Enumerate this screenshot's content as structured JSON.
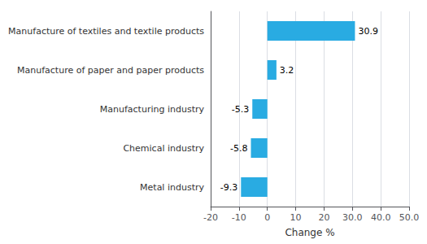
{
  "chart_data": {
    "type": "bar",
    "orientation": "horizontal",
    "categories": [
      "Metal industry",
      "Chemical industry",
      "Manufacturing industry",
      "Manufacture of paper and paper products",
      "Manufacture of textiles and textile products"
    ],
    "values": [
      -9.3,
      -5.8,
      -5.3,
      3.2,
      30.9
    ],
    "color": "#29abe2",
    "xlabel": "Change %",
    "xlim": [
      -20,
      50
    ],
    "xticks": [
      -20,
      -10,
      0,
      10,
      20,
      {
        "value": 30,
        "label": "30.0"
      },
      {
        "value": 40,
        "label": "40.0"
      },
      {
        "value": 50,
        "label": "50.0"
      }
    ],
    "grid": true,
    "data_labels": true
  }
}
